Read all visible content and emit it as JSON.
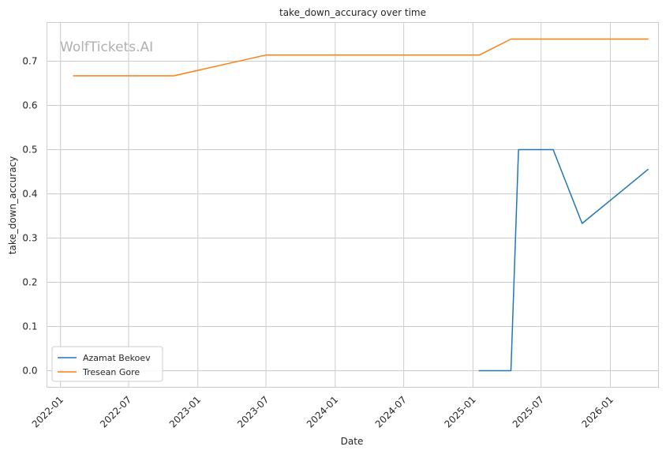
{
  "chart_data": {
    "type": "line",
    "title": "take_down_accuracy over time",
    "xlabel": "Date",
    "ylabel": "take_down_accuracy",
    "watermark": "WolfTickets.AI",
    "x_ticks": [
      "2022-01",
      "2022-07",
      "2023-01",
      "2023-07",
      "2024-01",
      "2024-07",
      "2025-01",
      "2025-07",
      "2026-01"
    ],
    "y_ticks": [
      "0.0",
      "0.1",
      "0.2",
      "0.3",
      "0.4",
      "0.5",
      "0.6",
      "0.7"
    ],
    "xlim": [
      "2021-11-26",
      "2026-05-09"
    ],
    "ylim": [
      -0.0375,
      0.7875
    ],
    "grid": true,
    "legend_position": "lower-left",
    "series": [
      {
        "name": "Azamat Bekoev",
        "color": "#1f77b4",
        "points": [
          {
            "x": "2025-01-18",
            "y": 0.0
          },
          {
            "x": "2025-04-12",
            "y": 0.0
          },
          {
            "x": "2025-05-02",
            "y": 0.5
          },
          {
            "x": "2025-08-02",
            "y": 0.5
          },
          {
            "x": "2025-10-18",
            "y": 0.333
          },
          {
            "x": "2026-04-11",
            "y": 0.455
          }
        ]
      },
      {
        "name": "Tresean Gore",
        "color": "#ff7f0e",
        "points": [
          {
            "x": "2022-02-05",
            "y": 0.667
          },
          {
            "x": "2022-10-29",
            "y": 0.667
          },
          {
            "x": "2023-07-01",
            "y": 0.714
          },
          {
            "x": "2025-01-18",
            "y": 0.714
          },
          {
            "x": "2025-04-12",
            "y": 0.75
          },
          {
            "x": "2026-04-11",
            "y": 0.75
          }
        ]
      }
    ]
  }
}
